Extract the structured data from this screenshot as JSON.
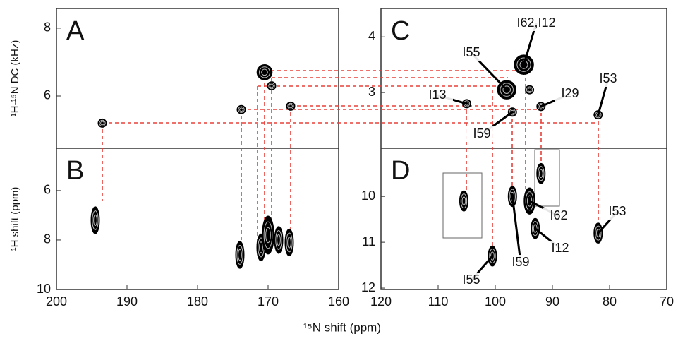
{
  "xlabel": "¹⁵N shift (ppm)",
  "chart_data": [
    {
      "type": "scatter",
      "title": "A",
      "ylabel": "¹H-¹⁵N DC (kHz)",
      "x": [
        193.5,
        173.8,
        170.5,
        169.5,
        166.8
      ],
      "values": [
        5.2,
        5.6,
        6.7,
        6.3,
        5.7
      ],
      "color": "#000000",
      "xlim": [
        200,
        160
      ],
      "ylim": [
        4.46,
        8.58
      ],
      "yticks": [
        6,
        8
      ]
    },
    {
      "type": "scatter",
      "title": "B",
      "ylabel": "¹H shift (ppm)",
      "x": [
        194.5,
        174,
        171,
        170,
        168.5,
        167
      ],
      "values": [
        7.2,
        8.6,
        8.3,
        7.8,
        8.0,
        8.1
      ],
      "color": "#000000",
      "xlim": [
        200,
        160
      ],
      "ylim": [
        10,
        4.29
      ],
      "xticks": [
        200,
        190,
        180,
        170,
        160
      ],
      "yticks": [
        6,
        8,
        10
      ]
    },
    {
      "type": "scatter",
      "title": "C",
      "x": [
        105,
        98,
        97,
        95,
        92,
        82,
        94
      ],
      "values": [
        2.8,
        3.05,
        2.65,
        3.5,
        2.75,
        2.6,
        3.05
      ],
      "labels": [
        "I13",
        "I55",
        "I59",
        "I62,I12",
        "I29",
        "I53",
        null
      ],
      "color": "#000000",
      "xlim": [
        120,
        70
      ],
      "ylim": [
        2.0,
        4.51
      ],
      "yticks": [
        3,
        4
      ]
    },
    {
      "type": "scatter",
      "title": "D",
      "x": [
        105.5,
        100.5,
        97,
        94,
        93,
        82,
        92
      ],
      "values": [
        10.1,
        11.3,
        10.0,
        10.1,
        10.7,
        10.8,
        9.5
      ],
      "labels": [
        null,
        "I55",
        "I59",
        "I62",
        "I12",
        "I53",
        null
      ],
      "color": "#000000",
      "xlim": [
        120,
        70
      ],
      "ylim": [
        12.03,
        8.95
      ],
      "xticks": [
        120,
        110,
        100,
        90,
        80,
        70
      ],
      "yticks": [
        10,
        11,
        12
      ]
    }
  ]
}
